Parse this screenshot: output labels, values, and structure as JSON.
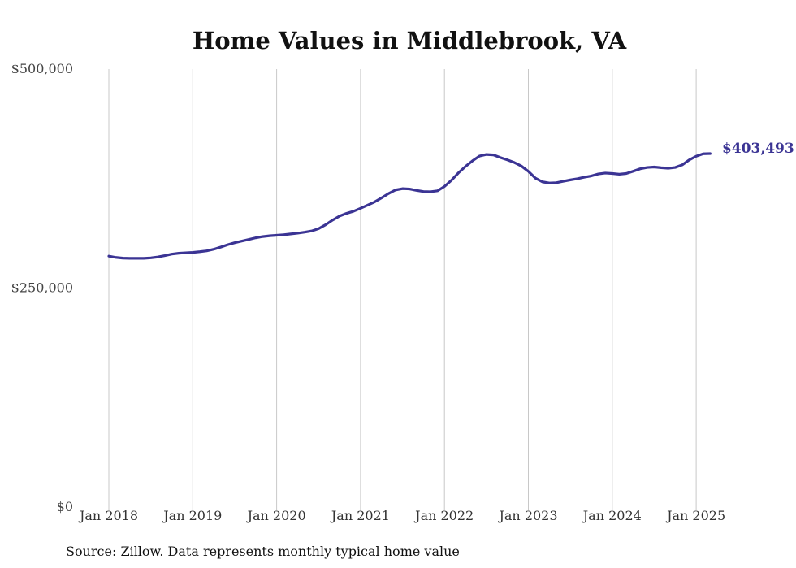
{
  "chart_data": {
    "type": "line",
    "title": "Home Values in Middlebrook, VA",
    "xlabel": "",
    "ylabel": "",
    "ylim": [
      0,
      500000
    ],
    "xlim": [
      "2018-01",
      "2025-03"
    ],
    "grid": "vertical lines at each January",
    "x_tick_labels": [
      "Jan 2018",
      "Jan 2019",
      "Jan 2020",
      "Jan 2021",
      "Jan 2022",
      "Jan 2023",
      "Jan 2024",
      "Jan 2025"
    ],
    "x_tick_dates": [
      "2018-01",
      "2019-01",
      "2020-01",
      "2021-01",
      "2022-01",
      "2023-01",
      "2024-01",
      "2025-01"
    ],
    "y_tick_labels": [
      "$0",
      "$250,000",
      "$500,000"
    ],
    "y_tick_values": [
      0,
      250000,
      500000
    ],
    "end_label": "$403,493",
    "line_color": "#3b3494",
    "series": [
      {
        "x": [
          "2018-01",
          "2018-02",
          "2018-03",
          "2018-04",
          "2018-05",
          "2018-06",
          "2018-07",
          "2018-08",
          "2018-09",
          "2018-10",
          "2018-11",
          "2018-12",
          "2019-01",
          "2019-02",
          "2019-03",
          "2019-04",
          "2019-05",
          "2019-06",
          "2019-07",
          "2019-08",
          "2019-09",
          "2019-10",
          "2019-11",
          "2019-12",
          "2020-01",
          "2020-02",
          "2020-03",
          "2020-04",
          "2020-05",
          "2020-06",
          "2020-07",
          "2020-08",
          "2020-09",
          "2020-10",
          "2020-11",
          "2020-12",
          "2021-01",
          "2021-02",
          "2021-03",
          "2021-04",
          "2021-05",
          "2021-06",
          "2021-07",
          "2021-08",
          "2021-09",
          "2021-10",
          "2021-11",
          "2021-12",
          "2022-01",
          "2022-02",
          "2022-03",
          "2022-04",
          "2022-05",
          "2022-06",
          "2022-07",
          "2022-08",
          "2022-09",
          "2022-10",
          "2022-11",
          "2022-12",
          "2023-01",
          "2023-02",
          "2023-03",
          "2023-04",
          "2023-05",
          "2023-06",
          "2023-07",
          "2023-08",
          "2023-09",
          "2023-10",
          "2023-11",
          "2023-12",
          "2024-01",
          "2024-02",
          "2024-03",
          "2024-04",
          "2024-05",
          "2024-06",
          "2024-07",
          "2024-08",
          "2024-09",
          "2024-10",
          "2024-11",
          "2024-12",
          "2025-01",
          "2025-02",
          "2025-03"
        ],
        "values": [
          286500,
          285000,
          284200,
          284000,
          284000,
          284000,
          284500,
          285500,
          287000,
          288800,
          289800,
          290300,
          290700,
          291500,
          292500,
          294300,
          296800,
          299500,
          301800,
          303600,
          305500,
          307400,
          308800,
          309700,
          310300,
          310900,
          311800,
          312700,
          313800,
          315200,
          317800,
          322300,
          327600,
          332200,
          335300,
          337700,
          341100,
          344700,
          348300,
          353000,
          357900,
          362000,
          363500,
          363100,
          361500,
          360200,
          360000,
          361000,
          366000,
          373100,
          381500,
          388800,
          395200,
          400700,
          402500,
          402000,
          399000,
          396300,
          393300,
          389300,
          383200,
          375500,
          371300,
          369900,
          370300,
          371900,
          373500,
          374800,
          376600,
          378000,
          380300,
          381300,
          380800,
          380000,
          380800,
          383400,
          386200,
          387700,
          388200,
          387400,
          386800,
          387700,
          390600,
          396300,
          400500,
          403300,
          403493
        ]
      }
    ]
  },
  "footer": {
    "source": "Source: Zillow. Data represents monthly typical home value"
  }
}
